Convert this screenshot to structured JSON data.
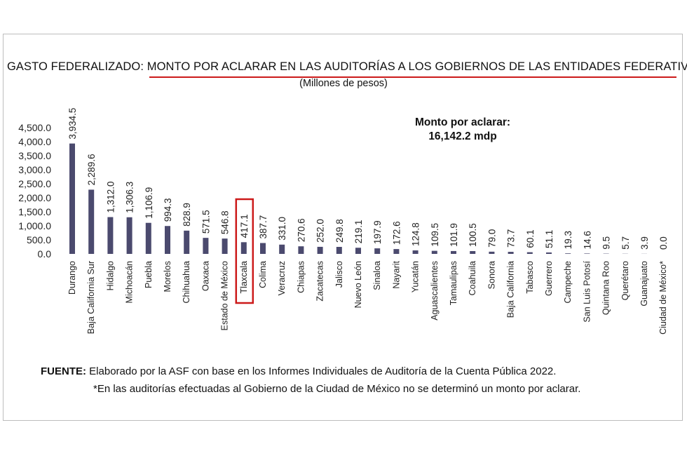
{
  "title": {
    "prefix": "GASTO FEDERALIZADO: ",
    "main": "MONTO POR ACLARAR EN LAS AUDITORÍAS A LOS GOBIERNOS DE LAS ENTIDADES FEDERATIVAS*"
  },
  "subtitle": "(Millones de pesos)",
  "total": {
    "label": "Monto por aclarar:",
    "value": "16,142.2 mdp"
  },
  "source": {
    "label": "FUENTE:",
    "text": " Elaborado por la ASF con base en los Informes Individuales de Auditoría de la Cuenta Pública 2022."
  },
  "note": "*En las auditorías efectuadas al Gobierno de la Ciudad de México no se determinó un monto por aclarar.",
  "colors": {
    "bar": "#4b4a6e",
    "highlight": "#cc1a1a",
    "underline": "#cc1a1a"
  },
  "chart_data": {
    "type": "bar",
    "categories": [
      "Durango",
      "Baja California Sur",
      "Hidalgo",
      "Michoacán",
      "Puebla",
      "Morelos",
      "Chihuahua",
      "Oaxaca",
      "Estado de México",
      "Tlaxcala",
      "Colima",
      "Veracruz",
      "Chiapas",
      "Zacatecas",
      "Jalisco",
      "Nuevo León",
      "Sinaloa",
      "Nayarit",
      "Yucatán",
      "Aguascalientes",
      "Tamaulipas",
      "Coahuila",
      "Sonora",
      "Baja California",
      "Tabasco",
      "Guerrero",
      "Campeche",
      "San Luis Potosí",
      "Quintana Roo",
      "Querétaro",
      "Guanajuato",
      "Ciudad de México*"
    ],
    "values": [
      3934.5,
      2289.6,
      1312.0,
      1306.3,
      1106.9,
      994.3,
      828.9,
      571.5,
      546.8,
      417.1,
      387.7,
      331.0,
      270.6,
      252.0,
      249.8,
      219.1,
      197.9,
      172.6,
      124.8,
      109.5,
      101.9,
      100.5,
      79.0,
      73.7,
      60.1,
      51.1,
      19.3,
      14.6,
      9.5,
      5.7,
      3.9,
      0.0
    ],
    "value_labels": [
      "3,934.5",
      "2,289.6",
      "1,312.0",
      "1,306.3",
      "1,106.9",
      "994.3",
      "828.9",
      "571.5",
      "546.8",
      "417.1",
      "387.7",
      "331.0",
      "270.6",
      "252.0",
      "249.8",
      "219.1",
      "197.9",
      "172.6",
      "124.8",
      "109.5",
      "101.9",
      "100.5",
      "79.0",
      "73.7",
      "60.1",
      "51.1",
      "19.3",
      "14.6",
      "9.5",
      "5.7",
      "3.9",
      "0.0"
    ],
    "yticks": [
      "0.0",
      "500.0",
      "1,000.0",
      "1,500.0",
      "2,000.0",
      "2,500.0",
      "3,000.0",
      "3,500.0",
      "4,000.0",
      "4,500.0"
    ],
    "ylim": [
      0,
      4500
    ],
    "highlighted_category": "Tlaxcala",
    "grid": false,
    "legend": "none"
  }
}
